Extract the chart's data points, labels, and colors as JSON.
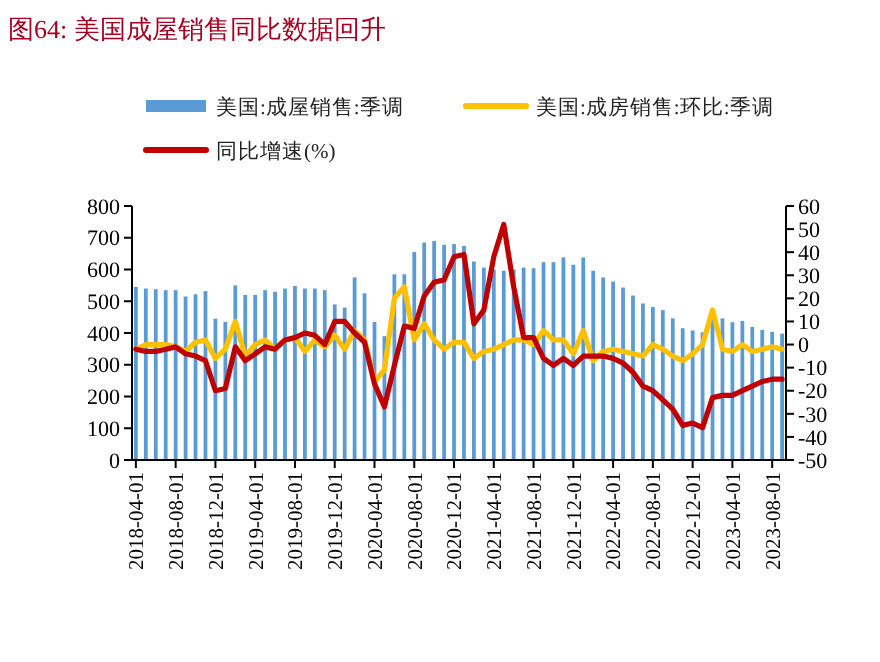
{
  "chart_data": {
    "type": "bar",
    "title": "图64:  美国成屋销售同比数据回升",
    "categories": [
      "2018-04-01",
      null,
      null,
      null,
      "2018-08-01",
      null,
      null,
      null,
      "2018-12-01",
      null,
      null,
      null,
      "2019-04-01",
      null,
      null,
      null,
      "2019-08-01",
      null,
      null,
      null,
      "2019-12-01",
      null,
      null,
      null,
      "2020-04-01",
      null,
      null,
      null,
      "2020-08-01",
      null,
      null,
      null,
      "2020-12-01",
      null,
      null,
      null,
      "2021-04-01",
      null,
      null,
      null,
      "2021-08-01",
      null,
      null,
      null,
      "2021-12-01",
      null,
      null,
      null,
      "2022-04-01",
      null,
      null,
      null,
      "2022-08-01",
      null,
      null,
      null,
      "2022-12-01",
      null,
      null,
      null,
      "2023-04-01",
      null,
      null,
      null,
      "2023-08-01",
      null
    ],
    "series": [
      {
        "name": "美国:成屋销售:季调",
        "color": "#5b9bd5",
        "values": [
          545,
          540,
          538,
          535,
          535,
          515,
          522,
          532,
          445,
          435,
          550,
          520,
          520,
          535,
          530,
          540,
          548,
          540,
          540,
          535,
          490,
          480,
          575,
          525,
          435,
          390,
          585,
          585,
          655,
          685,
          690,
          678,
          680,
          674,
          625,
          606,
          600,
          596,
          600,
          606,
          604,
          623,
          623,
          638,
          615,
          638,
          596,
          575,
          562,
          543,
          518,
          493,
          482,
          472,
          446,
          415,
          408,
          402,
          455,
          446,
          434,
          438,
          419,
          410,
          404,
          398
        ]
      },
      {
        "name": "美国:成房销售:环比:季调",
        "type": "line",
        "axis": "y2",
        "color": "#ffc000",
        "values": [
          -2,
          0,
          0,
          0,
          -1,
          -3,
          1,
          2,
          -6,
          -2,
          10,
          -5,
          0,
          2,
          -2,
          2,
          3,
          -3,
          2,
          -1,
          4,
          -2,
          6,
          2,
          -16,
          -11,
          20,
          25,
          2,
          9,
          2,
          -2,
          1,
          1,
          -6,
          -3,
          -2,
          0,
          2,
          2,
          0,
          6,
          2,
          2,
          -4,
          6,
          -7,
          -3,
          -2,
          -3,
          -4,
          -5,
          0,
          -2,
          -5,
          -7,
          -4,
          0,
          15,
          -2,
          -3,
          0,
          -3,
          -2,
          -1,
          -2
        ]
      },
      {
        "name": "同比增速(%)",
        "type": "line",
        "axis": "y2",
        "color": "#c00000",
        "values": [
          -2,
          -3,
          -3,
          -2,
          -1,
          -4,
          -5,
          -7,
          -20,
          -19,
          -1,
          -7,
          -4,
          -1,
          -2,
          2,
          3,
          5,
          4,
          0,
          10,
          10,
          5,
          1,
          -17,
          -27,
          -9,
          8,
          7,
          21,
          27,
          28,
          38,
          39,
          9,
          15,
          38,
          52,
          25,
          3,
          3,
          -6,
          -9,
          -6,
          -9,
          -5,
          -5,
          -5,
          -6,
          -8,
          -12,
          -18,
          -20,
          -24,
          -28,
          -35,
          -34,
          -36,
          -23,
          -22,
          -22,
          -20,
          -18,
          -16,
          -15,
          -15
        ]
      }
    ],
    "ylim": [
      0,
      800
    ],
    "yticks": [
      0,
      100,
      200,
      300,
      400,
      500,
      600,
      700,
      800
    ],
    "y2lim": [
      -50,
      60
    ],
    "y2ticks": [
      -50,
      -40,
      -30,
      -20,
      -10,
      0,
      10,
      20,
      30,
      40,
      50,
      60
    ],
    "legend": "top"
  }
}
